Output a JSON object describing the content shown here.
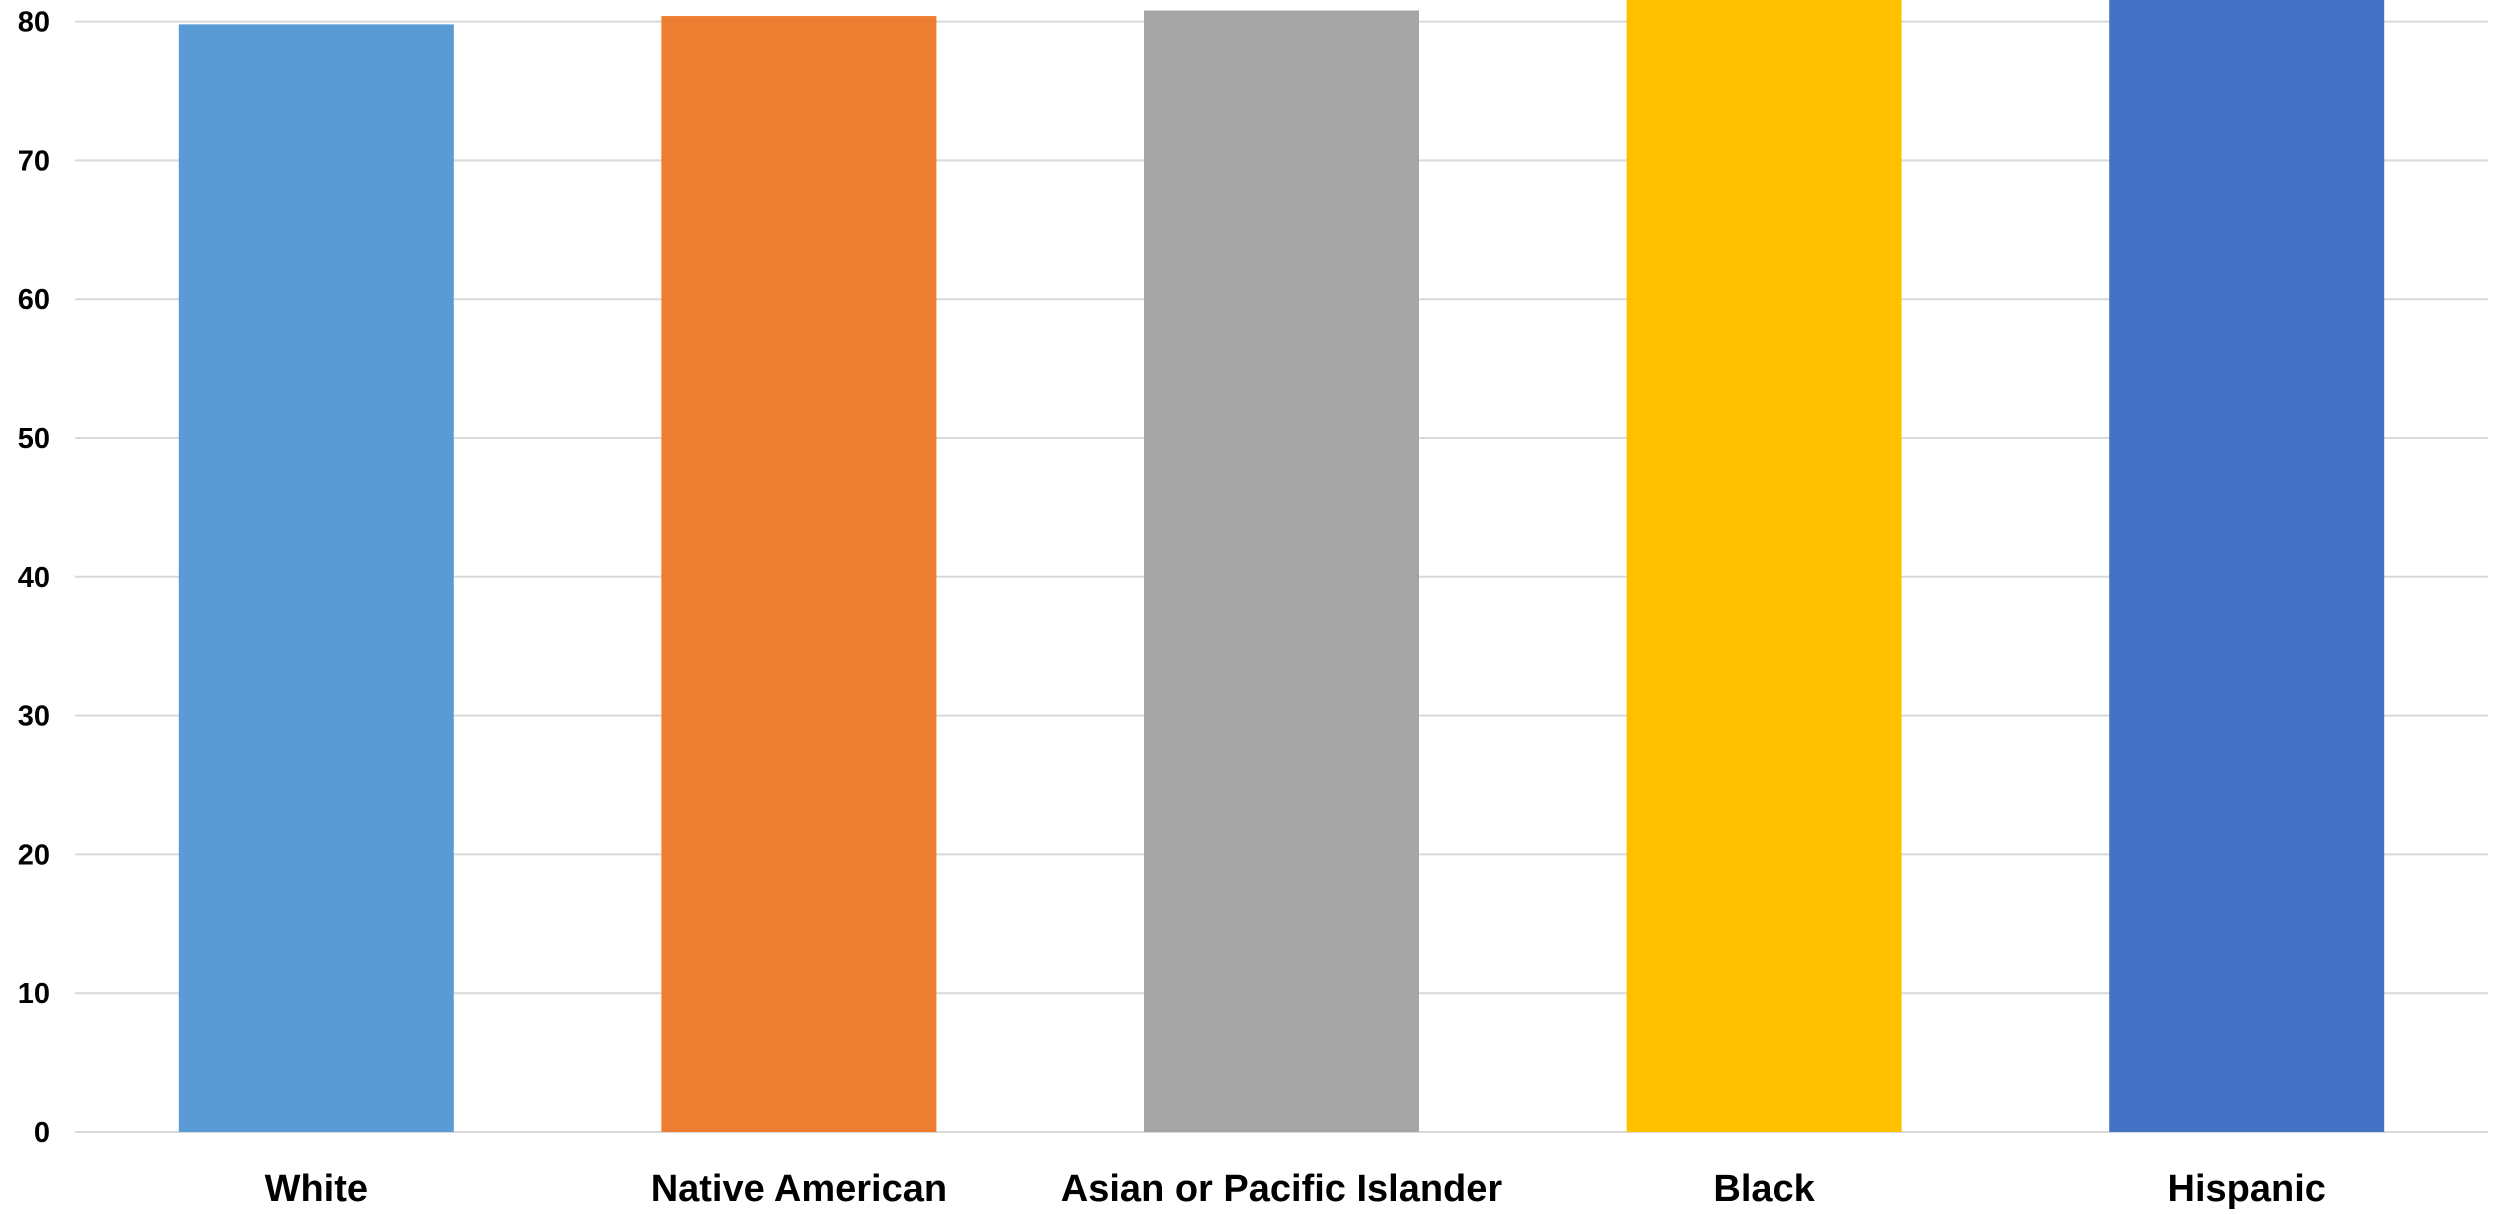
{
  "chart_data": {
    "type": "bar",
    "categories": [
      "White",
      "Native American",
      "Asian or Pacific Islander",
      "Black",
      "Hispanic"
    ],
    "values": [
      79.8,
      80.4,
      80.8,
      84.0,
      84.0
    ],
    "ylim": [
      0,
      80
    ],
    "yticks": [
      0,
      10,
      20,
      30,
      40,
      50,
      60,
      70,
      80
    ],
    "colors": [
      "#5B9BD5",
      "#ED7D31",
      "#A5A5A5",
      "#FFC000",
      "#4472C4"
    ],
    "gridline_color": "#D9D9D9",
    "grid": true,
    "legend": "none",
    "title": "",
    "xlabel": "",
    "ylabel": ""
  }
}
